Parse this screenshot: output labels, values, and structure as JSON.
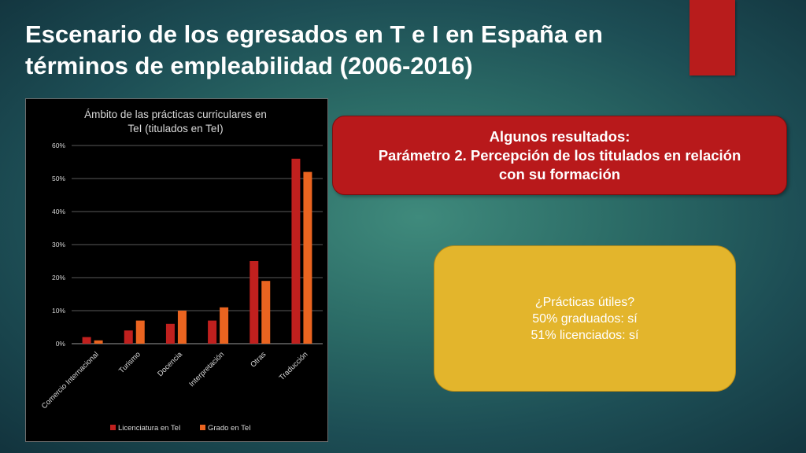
{
  "slide": {
    "title_line1": "Escenario de los egresados en T e I  en España en",
    "title_line2": "términos de empleabilidad (2006-2016)"
  },
  "results_box": {
    "line1": "Algunos resultados:",
    "line2": "Parámetro 2. Percepción de los titulados en relación",
    "line3": "con su formación"
  },
  "info_box": {
    "line1": "¿Prácticas útiles?",
    "line2": "50% graduados: sí",
    "line3": "51% licenciados: sí"
  },
  "colors": {
    "accent_red": "#b8191b",
    "accent_yellow": "#e3b52c",
    "series_licenciatura": "#c0201e",
    "series_grado": "#ea6420"
  },
  "chart_data": {
    "type": "bar",
    "title_line1": "Ámbito de las prácticas curriculares en",
    "title_line2": "TeI (titulados en TeI)",
    "categories": [
      "Comercio Internacional",
      "Turismo",
      "Docencia",
      "Interpretación",
      "Otras",
      "Traducción"
    ],
    "series": [
      {
        "name": "Licenciatura en TeI",
        "color": "#c0201e",
        "values": [
          2,
          4,
          6,
          7,
          25,
          56
        ]
      },
      {
        "name": "Grado en TeI",
        "color": "#ea6420",
        "values": [
          1,
          7,
          10,
          11,
          19,
          52
        ]
      }
    ],
    "ylim": [
      0,
      60
    ],
    "yticks": [
      "0%",
      "10%",
      "20%",
      "30%",
      "40%",
      "50%",
      "60%"
    ],
    "grid": true,
    "legend_position": "bottom"
  }
}
